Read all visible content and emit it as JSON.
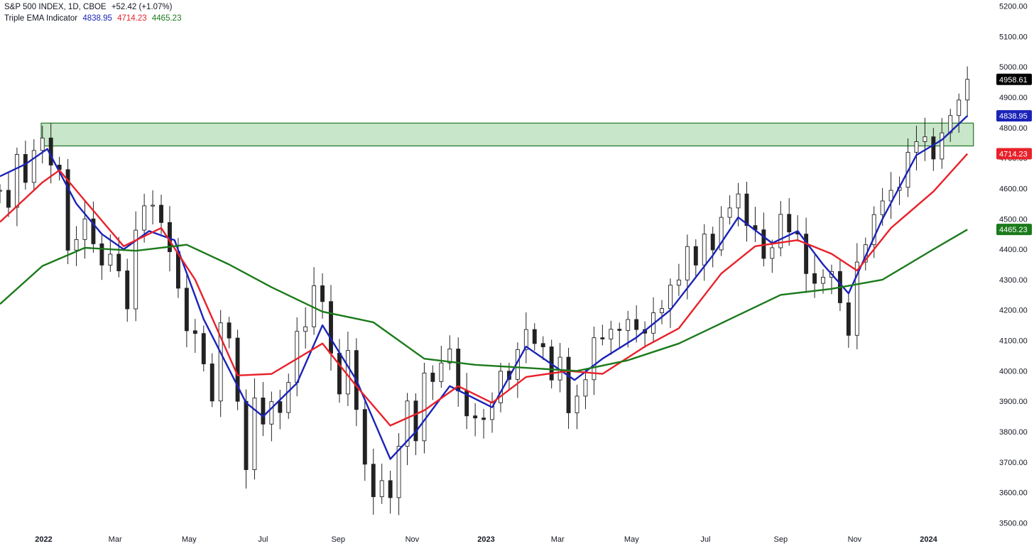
{
  "header": {
    "symbol_line": "S&P 500 INDEX, 1D, CBOE",
    "change": "+52.42 (+1.07%)",
    "indicator_name": "Triple EMA Indicator",
    "indicator_values": [
      "4838.95",
      "4714.23",
      "4465.23"
    ]
  },
  "colors": {
    "ema_fast": "#1a23b8",
    "ema_mid": "#e8212a",
    "ema_slow": "#1b7a1b",
    "candles": "#222222",
    "zone_fill": "#c8e6c9",
    "zone_stroke": "#2e7d32",
    "last_price_bg": "#000000"
  },
  "chart_data": {
    "type": "line",
    "title": "S&P 500 INDEX, 1D, CBOE",
    "x_labels": [
      "2022",
      "Mar",
      "May",
      "Jul",
      "Sep",
      "Nov",
      "2023",
      "Mar",
      "May",
      "Jul",
      "Sep",
      "Nov",
      "2024"
    ],
    "x_label_dates": [
      "2022-01-01",
      "2022-03-01",
      "2022-05-01",
      "2022-07-01",
      "2022-09-01",
      "2022-11-01",
      "2023-01-01",
      "2023-03-01",
      "2023-05-01",
      "2023-07-01",
      "2023-09-01",
      "2023-11-01",
      "2024-01-01"
    ],
    "y_ticks": [
      "5200.00",
      "5100.00",
      "5000.00",
      "4900.00",
      "4800.00",
      "4700.00",
      "4600.00",
      "4500.00",
      "4400.00",
      "4300.00",
      "4200.00",
      "4100.00",
      "4000.00",
      "3900.00",
      "3800.00",
      "3700.00",
      "3600.00",
      "3500.00"
    ],
    "ylim": [
      3480,
      5220
    ],
    "xlim": [
      "2021-11-26",
      "2024-02-23"
    ],
    "resistance_zone": {
      "low": 4740,
      "high": 4815,
      "start": "2021-12-30",
      "end": "2024-02-07"
    },
    "price": {
      "name": "S&P 500",
      "x": [
        "2021-11-26",
        "2021-12-03",
        "2021-12-10",
        "2021-12-17",
        "2021-12-24",
        "2021-12-31",
        "2022-01-07",
        "2022-01-14",
        "2022-01-21",
        "2022-01-28",
        "2022-02-04",
        "2022-02-11",
        "2022-02-18",
        "2022-02-25",
        "2022-03-04",
        "2022-03-11",
        "2022-03-18",
        "2022-03-25",
        "2022-04-01",
        "2022-04-08",
        "2022-04-15",
        "2022-04-22",
        "2022-04-29",
        "2022-05-06",
        "2022-05-13",
        "2022-05-20",
        "2022-05-27",
        "2022-06-03",
        "2022-06-10",
        "2022-06-17",
        "2022-06-24",
        "2022-07-01",
        "2022-07-08",
        "2022-07-15",
        "2022-07-22",
        "2022-07-29",
        "2022-08-05",
        "2022-08-12",
        "2022-08-19",
        "2022-08-26",
        "2022-09-02",
        "2022-09-09",
        "2022-09-16",
        "2022-09-23",
        "2022-09-30",
        "2022-10-07",
        "2022-10-14",
        "2022-10-21",
        "2022-10-28",
        "2022-11-04",
        "2022-11-11",
        "2022-11-18",
        "2022-11-25",
        "2022-12-02",
        "2022-12-09",
        "2022-12-16",
        "2022-12-23",
        "2022-12-30",
        "2023-01-06",
        "2023-01-13",
        "2023-01-20",
        "2023-01-27",
        "2023-02-03",
        "2023-02-10",
        "2023-02-17",
        "2023-02-24",
        "2023-03-03",
        "2023-03-10",
        "2023-03-17",
        "2023-03-24",
        "2023-03-31",
        "2023-04-07",
        "2023-04-14",
        "2023-04-21",
        "2023-04-28",
        "2023-05-05",
        "2023-05-12",
        "2023-05-19",
        "2023-05-26",
        "2023-06-02",
        "2023-06-09",
        "2023-06-16",
        "2023-06-23",
        "2023-06-30",
        "2023-07-07",
        "2023-07-14",
        "2023-07-21",
        "2023-07-28",
        "2023-08-04",
        "2023-08-11",
        "2023-08-18",
        "2023-08-25",
        "2023-09-01",
        "2023-09-08",
        "2023-09-15",
        "2023-09-22",
        "2023-09-29",
        "2023-10-06",
        "2023-10-13",
        "2023-10-20",
        "2023-10-27",
        "2023-11-03",
        "2023-11-10",
        "2023-11-17",
        "2023-11-24",
        "2023-12-01",
        "2023-12-08",
        "2023-12-15",
        "2023-12-22",
        "2023-12-29",
        "2024-01-05",
        "2024-01-12",
        "2024-01-19",
        "2024-01-26",
        "2024-02-02"
      ],
      "y": [
        4594,
        4538,
        4712,
        4620,
        4725,
        4766,
        4677,
        4662,
        4397,
        4432,
        4500,
        4418,
        4348,
        4384,
        4329,
        4204,
        4463,
        4543,
        4545,
        4488,
        4392,
        4272,
        4132,
        4123,
        4023,
        3901,
        4158,
        4108,
        3900,
        3675,
        3911,
        3825,
        3899,
        3863,
        3962,
        4130,
        4145,
        4280,
        4228,
        4058,
        3924,
        4067,
        3873,
        3693,
        3586,
        3639,
        3583,
        3752,
        3901,
        3770,
        3993,
        3965,
        4026,
        4072,
        3934,
        3852,
        3845,
        3840,
        3895,
        3999,
        3972,
        4070,
        4136,
        4090,
        4079,
        3970,
        4045,
        3862,
        3917,
        3971,
        4109,
        4105,
        4137,
        4133,
        4169,
        4136,
        4124,
        4191,
        4205,
        4282,
        4299,
        4409,
        4348,
        4450,
        4398,
        4505,
        4536,
        4582,
        4478,
        4464,
        4370,
        4405,
        4515,
        4457,
        4450,
        4320,
        4288,
        4308,
        4327,
        4224,
        4117,
        4358,
        4415,
        4514,
        4559,
        4594,
        4604,
        4719,
        4754,
        4770,
        4697,
        4783,
        4840,
        4891,
        4959
      ]
    },
    "series": [
      {
        "name": "Triple EMA Indicator",
        "last": 4838.95,
        "x": [
          "2021-11-26",
          "2021-12-17",
          "2022-01-04",
          "2022-01-28",
          "2022-02-18",
          "2022-03-08",
          "2022-03-29",
          "2022-04-19",
          "2022-05-13",
          "2022-06-17",
          "2022-07-01",
          "2022-07-29",
          "2022-08-19",
          "2022-09-16",
          "2022-10-14",
          "2022-11-04",
          "2022-12-02",
          "2023-01-06",
          "2023-02-03",
          "2023-03-15",
          "2023-04-07",
          "2023-05-05",
          "2023-06-02",
          "2023-07-07",
          "2023-07-28",
          "2023-08-25",
          "2023-09-15",
          "2023-10-06",
          "2023-10-27",
          "2023-11-24",
          "2023-12-22",
          "2024-01-12",
          "2024-02-02"
        ],
        "y": [
          4640,
          4680,
          4730,
          4550,
          4450,
          4400,
          4460,
          4430,
          4170,
          3895,
          3850,
          3960,
          4150,
          3970,
          3710,
          3800,
          3950,
          3880,
          4080,
          3970,
          4040,
          4110,
          4200,
          4380,
          4505,
          4420,
          4460,
          4350,
          4255,
          4500,
          4710,
          4760,
          4839
        ]
      },
      {
        "name": "Triple EMA Indicator",
        "last": 4714.23,
        "x": [
          "2021-11-26",
          "2021-12-31",
          "2022-01-14",
          "2022-02-04",
          "2022-03-08",
          "2022-04-08",
          "2022-05-06",
          "2022-06-10",
          "2022-07-08",
          "2022-08-19",
          "2022-09-16",
          "2022-10-14",
          "2022-11-11",
          "2022-12-09",
          "2023-01-06",
          "2023-02-03",
          "2023-03-10",
          "2023-04-07",
          "2023-05-12",
          "2023-06-09",
          "2023-07-14",
          "2023-08-11",
          "2023-09-15",
          "2023-10-13",
          "2023-11-03",
          "2023-12-01",
          "2024-01-05",
          "2024-02-02"
        ],
        "y": [
          4490,
          4620,
          4660,
          4560,
          4410,
          4470,
          4300,
          3985,
          3990,
          4090,
          3950,
          3820,
          3870,
          3950,
          3895,
          3980,
          4000,
          3990,
          4080,
          4140,
          4320,
          4410,
          4430,
          4385,
          4330,
          4470,
          4590,
          4714
        ]
      },
      {
        "name": "Triple EMA Indicator",
        "last": 4465.23,
        "x": [
          "2021-11-26",
          "2021-12-31",
          "2022-02-04",
          "2022-03-18",
          "2022-04-29",
          "2022-06-03",
          "2022-07-08",
          "2022-08-19",
          "2022-09-30",
          "2022-11-11",
          "2022-12-23",
          "2023-02-03",
          "2023-03-17",
          "2023-04-28",
          "2023-06-09",
          "2023-07-21",
          "2023-09-01",
          "2023-10-13",
          "2023-11-24",
          "2024-01-05",
          "2024-02-02"
        ],
        "y": [
          4220,
          4345,
          4405,
          4395,
          4415,
          4350,
          4275,
          4195,
          4160,
          4040,
          4020,
          4010,
          4000,
          4035,
          4090,
          4170,
          4250,
          4270,
          4300,
          4400,
          4465
        ]
      }
    ],
    "price_labels": [
      "4958.61",
      "4838.95",
      "4714.23",
      "4465.23"
    ],
    "grid": false,
    "legend": "top-left"
  }
}
